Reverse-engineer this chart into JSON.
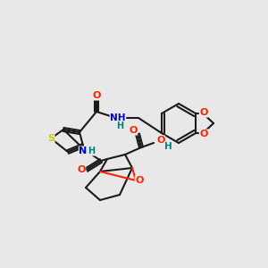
{
  "background_color": "#e8e8e8",
  "bond_color": "#1a1a1a",
  "atom_colors": {
    "O": "#ff2200",
    "N": "#0000cc",
    "S": "#cccc00",
    "C": "#1a1a1a",
    "H": "#008080"
  },
  "figsize": [
    3.0,
    3.0
  ],
  "dpi": 100
}
